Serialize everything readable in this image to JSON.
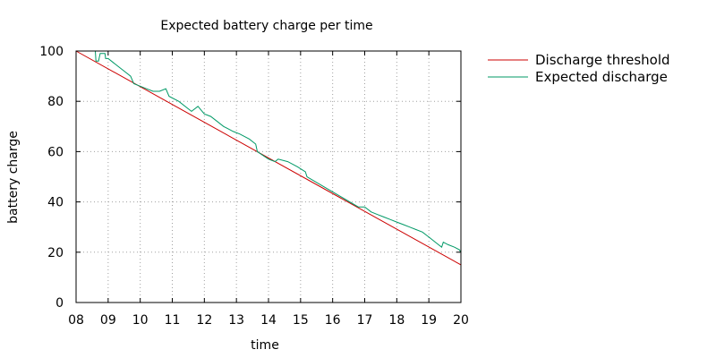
{
  "chart_data": {
    "type": "line",
    "title": "Expected battery charge per time",
    "xlabel": "time",
    "ylabel": "battery charge",
    "xlim": [
      8,
      20
    ],
    "ylim": [
      0,
      100
    ],
    "x_ticks": [
      8,
      9,
      10,
      11,
      12,
      13,
      14,
      15,
      16,
      17,
      18,
      19,
      20
    ],
    "x_tick_labels": [
      "08",
      "09",
      "10",
      "11",
      "12",
      "13",
      "14",
      "15",
      "16",
      "17",
      "18",
      "19",
      "20"
    ],
    "y_ticks": [
      0,
      20,
      40,
      60,
      80,
      100
    ],
    "y_tick_labels": [
      "0",
      "20",
      "40",
      "60",
      "80",
      "100"
    ],
    "grid": true,
    "legend_position": "outside-right-top",
    "series": [
      {
        "name": "Discharge threshold",
        "color": "#cc0000",
        "x": [
          8,
          20
        ],
        "y": [
          100,
          15
        ]
      },
      {
        "name": "Expected discharge",
        "color": "#009966",
        "x": [
          8.0,
          8.6,
          8.62,
          8.7,
          8.75,
          8.9,
          8.92,
          9.0,
          9.1,
          9.3,
          9.5,
          9.7,
          9.8,
          10.0,
          10.2,
          10.4,
          10.6,
          10.8,
          10.9,
          11.2,
          11.5,
          11.6,
          11.8,
          12.0,
          12.2,
          12.4,
          12.6,
          12.9,
          13.1,
          13.4,
          13.6,
          13.65,
          14.0,
          14.2,
          14.3,
          14.6,
          14.9,
          15.15,
          15.2,
          16.0,
          16.8,
          17.0,
          17.2,
          17.4,
          17.6,
          17.8,
          18.0,
          18.2,
          18.4,
          18.6,
          18.8,
          18.9,
          19.0,
          19.3,
          19.4,
          19.45,
          19.6,
          19.8,
          19.95,
          20.0
        ],
        "y": [
          100,
          100,
          96,
          96,
          99,
          99,
          97,
          97,
          96,
          94,
          92,
          90,
          87,
          86,
          85,
          84,
          84,
          85,
          82,
          80,
          77,
          76,
          78,
          75,
          74,
          72,
          70,
          68,
          67,
          65,
          63,
          60,
          57,
          56,
          57,
          56,
          54,
          52,
          50,
          44,
          38,
          38,
          36,
          35,
          34,
          33,
          32,
          31,
          30,
          29,
          28,
          27,
          26,
          23,
          22,
          24,
          23,
          22,
          21,
          20
        ]
      }
    ]
  }
}
